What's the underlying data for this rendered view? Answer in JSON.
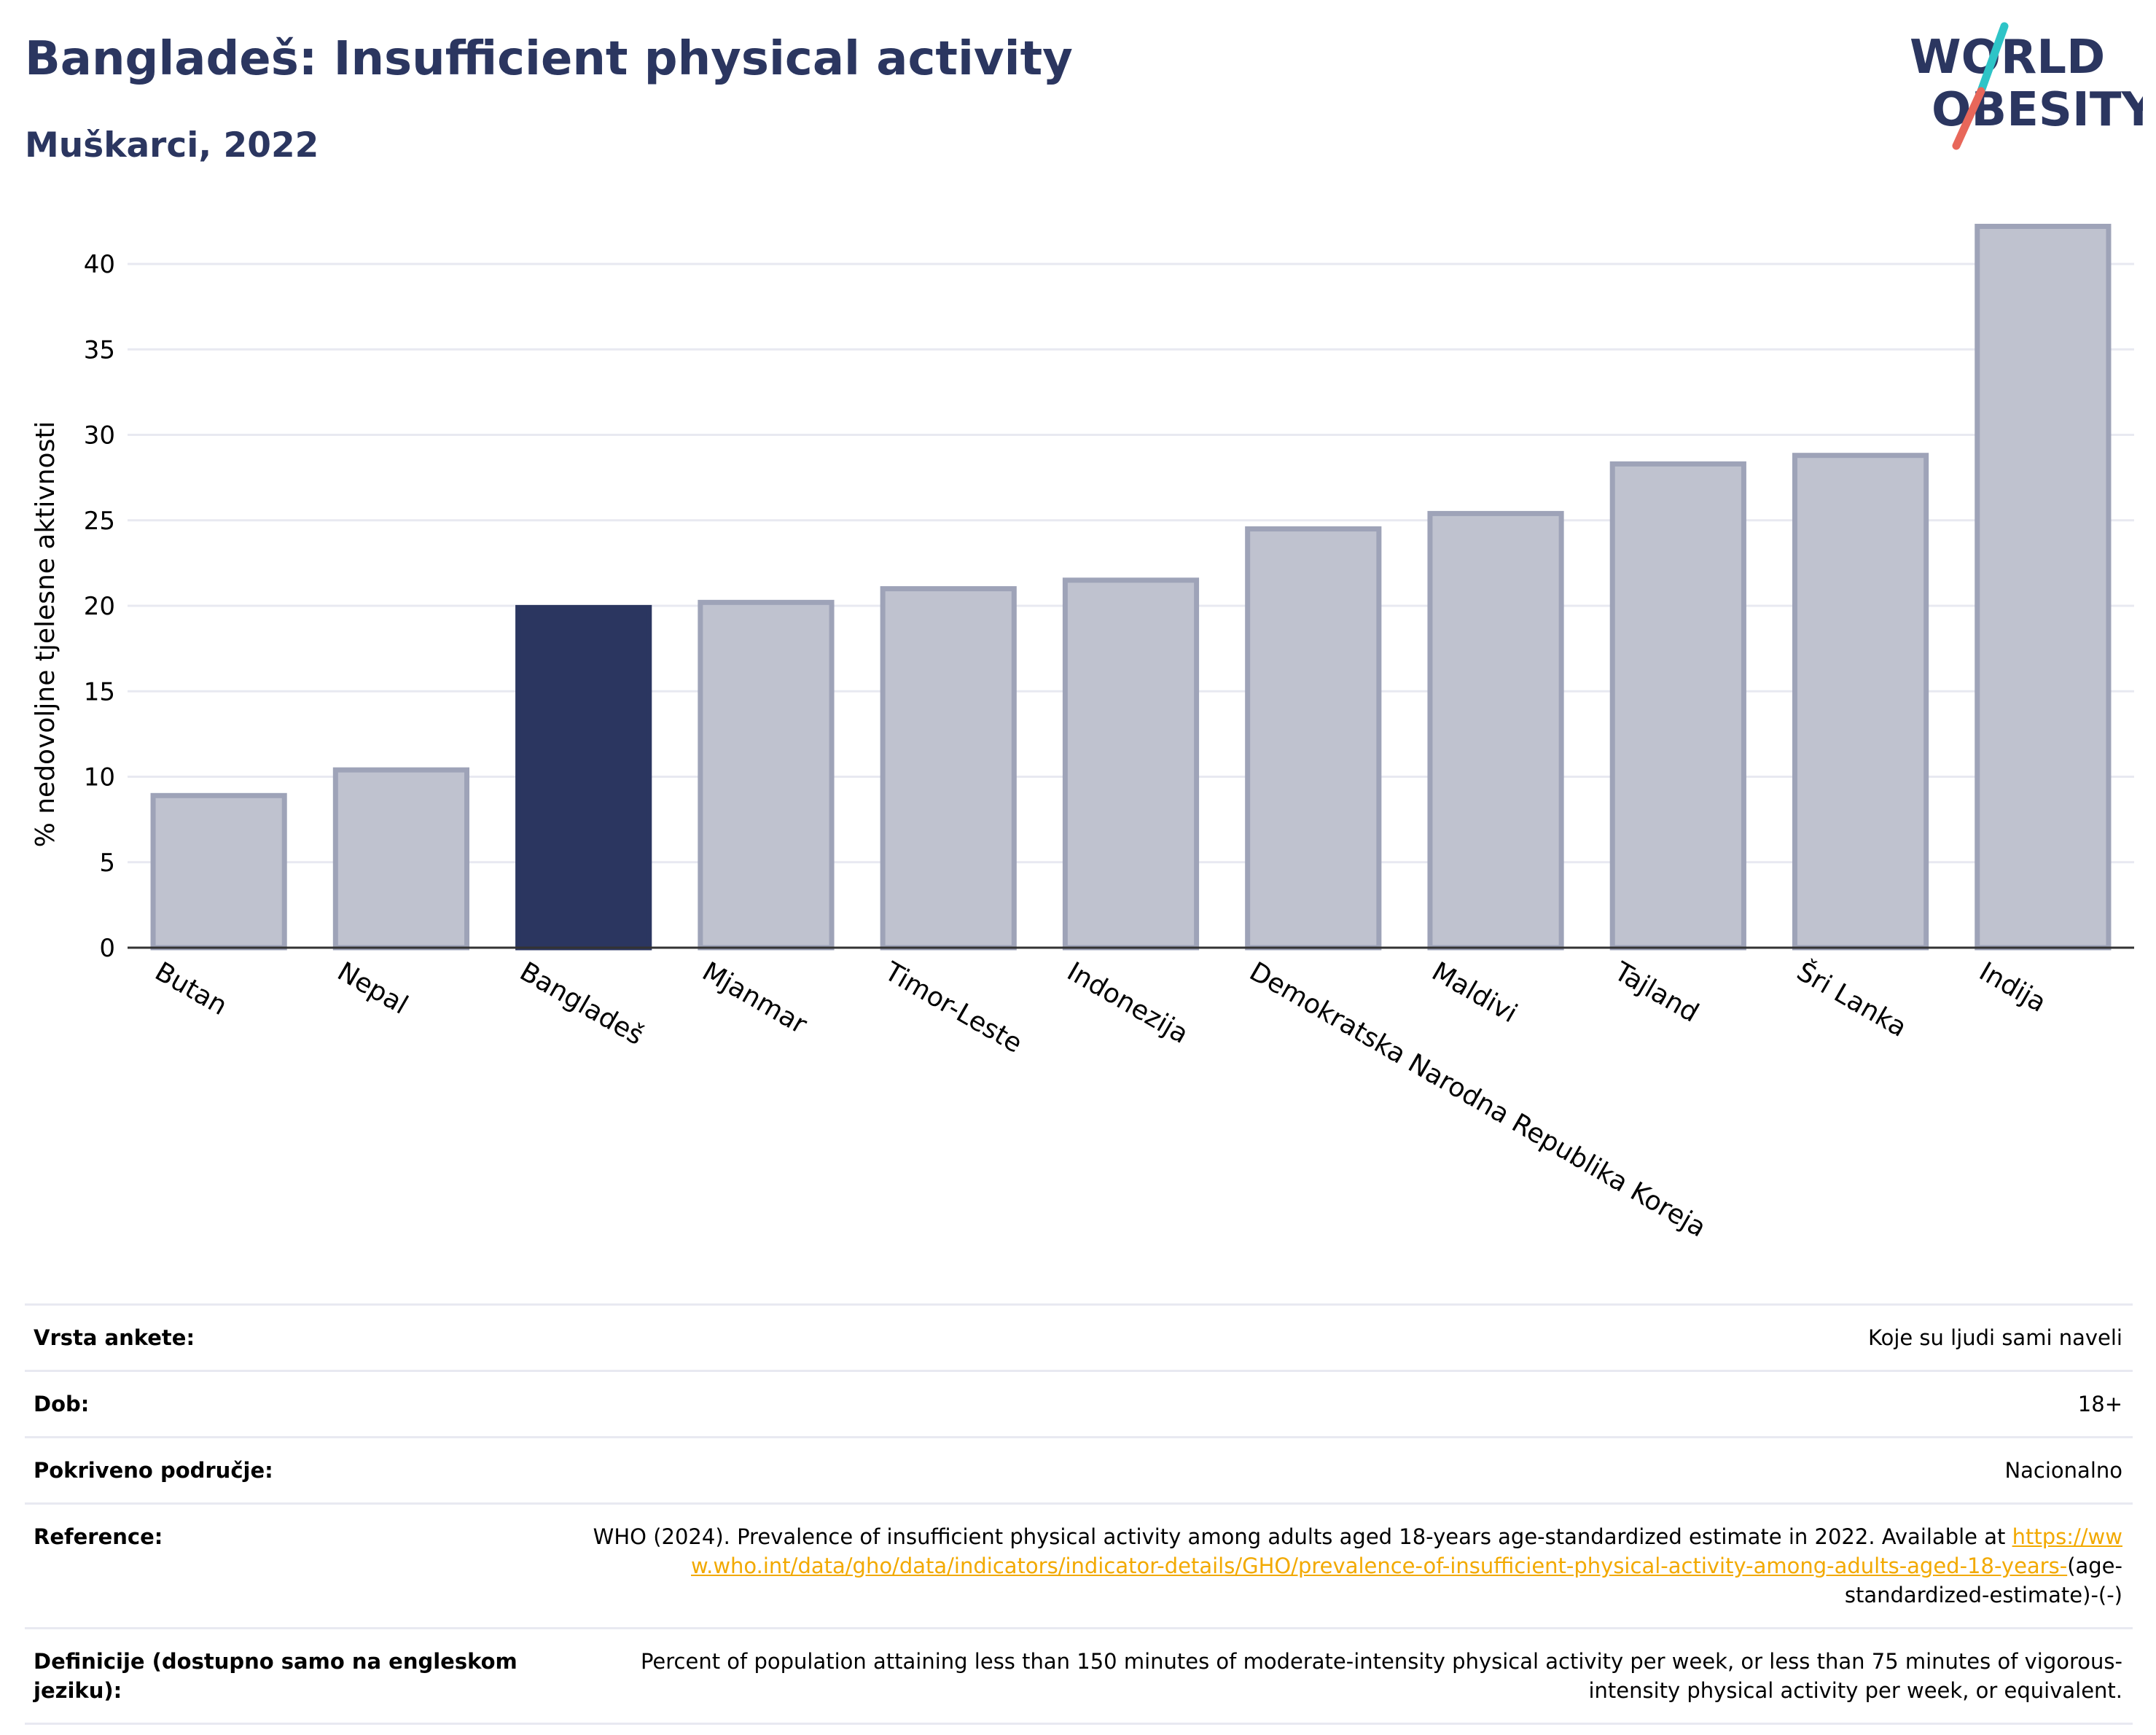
{
  "header": {
    "title": "Bangladeš: Insufficient physical activity",
    "subtitle": "Muškarci, 2022",
    "logo_line1": "WORLD",
    "logo_line2": "OBESITY"
  },
  "colors": {
    "title": "#2b3660",
    "bar": "#bfc2cf",
    "bar_border": "#9ea3b8",
    "bar_highlight": "#2b3660",
    "grid": "#e8e9f1",
    "axis": "#333333",
    "link": "#f2a900",
    "logo_teal": "#2ec4c7",
    "logo_coral": "#e8675a"
  },
  "chart_data": {
    "type": "bar",
    "title": "Bangladeš: Insufficient physical activity",
    "subtitle": "Muškarci, 2022",
    "xlabel": "",
    "ylabel": "% nedovoljne tjelesne aktivnosti",
    "ylim": [
      0,
      43.5
    ],
    "yticks": [
      0,
      5,
      10,
      15,
      20,
      25,
      30,
      35,
      40
    ],
    "grid": true,
    "categories": [
      "Butan",
      "Nepal",
      "Bangladeš",
      "Mjanmar",
      "Timor-Leste",
      "Indonezija",
      "Demokratska Narodna Republika Koreja",
      "Maldivi",
      "Tajland",
      "Šri Lanka",
      "Indija"
    ],
    "values": [
      8.9,
      10.4,
      19.9,
      20.2,
      21.0,
      21.5,
      24.5,
      25.4,
      28.3,
      28.8,
      42.2
    ],
    "highlight": "Bangladeš"
  },
  "meta": {
    "rows": [
      {
        "label": "Vrsta ankete:",
        "value": "Koje su ljudi sami naveli"
      },
      {
        "label": "Dob:",
        "value": "18+"
      },
      {
        "label": "Pokriveno područje:",
        "value": "Nacionalno"
      }
    ],
    "reference": {
      "label": "Reference:",
      "text": "WHO (2024). Prevalence of insufficient physical activity among adults aged 18-years age-standardized estimate in 2022. Available at",
      "link": "https://www.who.int/data/gho/data/indicators/indicator-details/GHO/prevalence-of-insufficient-physical-activity-among-adults-aged-18-years-",
      "suffix": "(age-standardized-estimate)-(-)"
    },
    "definition": {
      "label": "Definicije (dostupno samo na engleskom jeziku):",
      "value": "Percent of population attaining less than 150 minutes of moderate-intensity physical activity per week, or less than 75 minutes of vigorous-intensity physical activity per week, or equivalent."
    }
  }
}
